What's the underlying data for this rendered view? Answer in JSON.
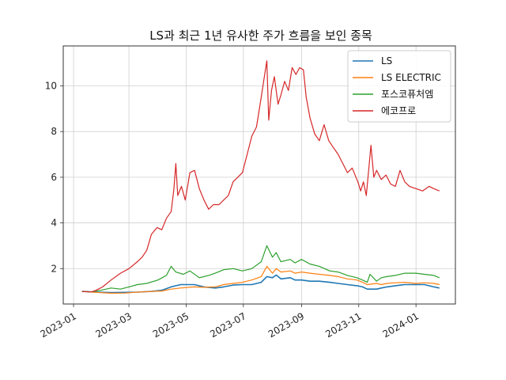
{
  "chart_data": {
    "type": "line",
    "title": "LS과 최근 1년 유사한 주가 흐름을 보인 종목",
    "xlabel": "",
    "ylabel": "",
    "x_ticks": [
      "2023-01",
      "2023-03",
      "2023-05",
      "2023-07",
      "2023-09",
      "2023-11",
      "2024-01"
    ],
    "y_ticks": [
      2,
      4,
      6,
      8,
      10
    ],
    "xlim": [
      "2022-12-21",
      "2024-02-12"
    ],
    "ylim": [
      0.45,
      11.75
    ],
    "grid": true,
    "legend_position": "top-right",
    "series": [
      {
        "name": "LS",
        "color": "#1f77b4",
        "points": [
          [
            "2023-01-10",
            1.0
          ],
          [
            "2023-01-25",
            0.97
          ],
          [
            "2023-02-10",
            0.95
          ],
          [
            "2023-02-25",
            0.96
          ],
          [
            "2023-03-10",
            0.97
          ],
          [
            "2023-03-25",
            1.0
          ],
          [
            "2023-04-05",
            1.05
          ],
          [
            "2023-04-15",
            1.2
          ],
          [
            "2023-04-25",
            1.3
          ],
          [
            "2023-05-10",
            1.3
          ],
          [
            "2023-05-20",
            1.2
          ],
          [
            "2023-06-01",
            1.15
          ],
          [
            "2023-06-10",
            1.2
          ],
          [
            "2023-06-20",
            1.28
          ],
          [
            "2023-06-30",
            1.3
          ],
          [
            "2023-07-10",
            1.3
          ],
          [
            "2023-07-20",
            1.4
          ],
          [
            "2023-07-26",
            1.65
          ],
          [
            "2023-08-01",
            1.6
          ],
          [
            "2023-08-05",
            1.72
          ],
          [
            "2023-08-10",
            1.55
          ],
          [
            "2023-08-20",
            1.6
          ],
          [
            "2023-08-25",
            1.5
          ],
          [
            "2023-09-01",
            1.5
          ],
          [
            "2023-09-10",
            1.45
          ],
          [
            "2023-09-20",
            1.45
          ],
          [
            "2023-10-01",
            1.4
          ],
          [
            "2023-10-10",
            1.35
          ],
          [
            "2023-10-20",
            1.3
          ],
          [
            "2023-10-30",
            1.25
          ],
          [
            "2023-11-05",
            1.2
          ],
          [
            "2023-11-10",
            1.1
          ],
          [
            "2023-11-20",
            1.1
          ],
          [
            "2023-11-25",
            1.15
          ],
          [
            "2023-12-01",
            1.2
          ],
          [
            "2023-12-10",
            1.25
          ],
          [
            "2023-12-20",
            1.3
          ],
          [
            "2024-01-01",
            1.3
          ],
          [
            "2024-01-10",
            1.3
          ],
          [
            "2024-01-20",
            1.2
          ],
          [
            "2024-01-26",
            1.15
          ]
        ]
      },
      {
        "name": "LS ELECTRIC",
        "color": "#ff7f0e",
        "points": [
          [
            "2023-01-10",
            1.0
          ],
          [
            "2023-01-25",
            0.96
          ],
          [
            "2023-02-10",
            0.92
          ],
          [
            "2023-02-25",
            0.93
          ],
          [
            "2023-03-10",
            0.97
          ],
          [
            "2023-03-25",
            1.0
          ],
          [
            "2023-04-05",
            1.02
          ],
          [
            "2023-04-15",
            1.1
          ],
          [
            "2023-04-25",
            1.15
          ],
          [
            "2023-05-10",
            1.2
          ],
          [
            "2023-05-20",
            1.18
          ],
          [
            "2023-06-01",
            1.2
          ],
          [
            "2023-06-10",
            1.3
          ],
          [
            "2023-06-20",
            1.35
          ],
          [
            "2023-06-30",
            1.4
          ],
          [
            "2023-07-10",
            1.5
          ],
          [
            "2023-07-20",
            1.65
          ],
          [
            "2023-07-26",
            2.1
          ],
          [
            "2023-08-01",
            1.8
          ],
          [
            "2023-08-05",
            2.0
          ],
          [
            "2023-08-10",
            1.85
          ],
          [
            "2023-08-20",
            1.9
          ],
          [
            "2023-08-25",
            1.8
          ],
          [
            "2023-09-01",
            1.85
          ],
          [
            "2023-09-10",
            1.8
          ],
          [
            "2023-09-20",
            1.75
          ],
          [
            "2023-10-01",
            1.7
          ],
          [
            "2023-10-10",
            1.65
          ],
          [
            "2023-10-20",
            1.55
          ],
          [
            "2023-10-30",
            1.5
          ],
          [
            "2023-11-05",
            1.4
          ],
          [
            "2023-11-10",
            1.3
          ],
          [
            "2023-11-20",
            1.35
          ],
          [
            "2023-11-25",
            1.3
          ],
          [
            "2023-12-01",
            1.35
          ],
          [
            "2023-12-10",
            1.38
          ],
          [
            "2023-12-20",
            1.4
          ],
          [
            "2024-01-01",
            1.35
          ],
          [
            "2024-01-10",
            1.38
          ],
          [
            "2024-01-20",
            1.35
          ],
          [
            "2024-01-26",
            1.3
          ]
        ]
      },
      {
        "name": "포스코퓨처엠",
        "color": "#2ca02c",
        "points": [
          [
            "2023-01-10",
            1.0
          ],
          [
            "2023-01-20",
            0.98
          ],
          [
            "2023-01-30",
            1.05
          ],
          [
            "2023-02-10",
            1.15
          ],
          [
            "2023-02-20",
            1.1
          ],
          [
            "2023-03-01",
            1.2
          ],
          [
            "2023-03-10",
            1.3
          ],
          [
            "2023-03-20",
            1.35
          ],
          [
            "2023-04-01",
            1.5
          ],
          [
            "2023-04-10",
            1.7
          ],
          [
            "2023-04-15",
            2.1
          ],
          [
            "2023-04-20",
            1.85
          ],
          [
            "2023-04-28",
            1.75
          ],
          [
            "2023-05-05",
            1.9
          ],
          [
            "2023-05-15",
            1.6
          ],
          [
            "2023-05-25",
            1.7
          ],
          [
            "2023-06-01",
            1.8
          ],
          [
            "2023-06-10",
            1.95
          ],
          [
            "2023-06-20",
            2.0
          ],
          [
            "2023-06-30",
            1.9
          ],
          [
            "2023-07-10",
            2.0
          ],
          [
            "2023-07-20",
            2.3
          ],
          [
            "2023-07-26",
            3.0
          ],
          [
            "2023-08-01",
            2.5
          ],
          [
            "2023-08-05",
            2.7
          ],
          [
            "2023-08-10",
            2.3
          ],
          [
            "2023-08-20",
            2.4
          ],
          [
            "2023-08-25",
            2.25
          ],
          [
            "2023-09-01",
            2.4
          ],
          [
            "2023-09-10",
            2.2
          ],
          [
            "2023-09-20",
            2.1
          ],
          [
            "2023-10-01",
            1.9
          ],
          [
            "2023-10-10",
            1.85
          ],
          [
            "2023-10-20",
            1.7
          ],
          [
            "2023-10-30",
            1.6
          ],
          [
            "2023-11-05",
            1.5
          ],
          [
            "2023-11-10",
            1.4
          ],
          [
            "2023-11-13",
            1.75
          ],
          [
            "2023-11-20",
            1.45
          ],
          [
            "2023-11-25",
            1.6
          ],
          [
            "2023-12-01",
            1.65
          ],
          [
            "2023-12-10",
            1.7
          ],
          [
            "2023-12-20",
            1.8
          ],
          [
            "2024-01-01",
            1.8
          ],
          [
            "2024-01-10",
            1.75
          ],
          [
            "2024-01-20",
            1.7
          ],
          [
            "2024-01-26",
            1.6
          ]
        ]
      },
      {
        "name": "에코프로",
        "color": "#d62728",
        "points": [
          [
            "2023-01-10",
            1.0
          ],
          [
            "2023-01-20",
            0.98
          ],
          [
            "2023-01-25",
            1.05
          ],
          [
            "2023-02-01",
            1.2
          ],
          [
            "2023-02-10",
            1.5
          ],
          [
            "2023-02-20",
            1.8
          ],
          [
            "2023-03-01",
            2.0
          ],
          [
            "2023-03-10",
            2.3
          ],
          [
            "2023-03-15",
            2.5
          ],
          [
            "2023-03-20",
            2.8
          ],
          [
            "2023-03-25",
            3.5
          ],
          [
            "2023-03-31",
            3.8
          ],
          [
            "2023-04-05",
            3.7
          ],
          [
            "2023-04-10",
            4.2
          ],
          [
            "2023-04-15",
            4.5
          ],
          [
            "2023-04-18",
            5.5
          ],
          [
            "2023-04-20",
            6.6
          ],
          [
            "2023-04-22",
            5.2
          ],
          [
            "2023-04-26",
            5.6
          ],
          [
            "2023-04-30",
            5.0
          ],
          [
            "2023-05-05",
            6.2
          ],
          [
            "2023-05-10",
            6.3
          ],
          [
            "2023-05-15",
            5.5
          ],
          [
            "2023-05-20",
            5.0
          ],
          [
            "2023-05-25",
            4.6
          ],
          [
            "2023-05-30",
            4.8
          ],
          [
            "2023-06-05",
            4.8
          ],
          [
            "2023-06-10",
            5.0
          ],
          [
            "2023-06-15",
            5.2
          ],
          [
            "2023-06-20",
            5.8
          ],
          [
            "2023-06-25",
            6.0
          ],
          [
            "2023-06-30",
            6.2
          ],
          [
            "2023-07-05",
            7.0
          ],
          [
            "2023-07-10",
            7.8
          ],
          [
            "2023-07-15",
            8.2
          ],
          [
            "2023-07-20",
            9.5
          ],
          [
            "2023-07-23",
            10.3
          ],
          [
            "2023-07-26",
            11.1
          ],
          [
            "2023-07-28",
            8.5
          ],
          [
            "2023-07-31",
            9.8
          ],
          [
            "2023-08-03",
            10.4
          ],
          [
            "2023-08-07",
            9.2
          ],
          [
            "2023-08-10",
            9.6
          ],
          [
            "2023-08-14",
            10.2
          ],
          [
            "2023-08-18",
            9.8
          ],
          [
            "2023-08-22",
            10.8
          ],
          [
            "2023-08-26",
            10.5
          ],
          [
            "2023-08-30",
            10.8
          ],
          [
            "2023-09-03",
            10.7
          ],
          [
            "2023-09-06",
            9.5
          ],
          [
            "2023-09-10",
            8.6
          ],
          [
            "2023-09-15",
            7.9
          ],
          [
            "2023-09-20",
            7.6
          ],
          [
            "2023-09-25",
            8.3
          ],
          [
            "2023-09-30",
            7.6
          ],
          [
            "2023-10-05",
            7.3
          ],
          [
            "2023-10-10",
            7.0
          ],
          [
            "2023-10-15",
            6.6
          ],
          [
            "2023-10-20",
            6.2
          ],
          [
            "2023-10-25",
            6.4
          ],
          [
            "2023-10-31",
            5.8
          ],
          [
            "2023-11-03",
            5.4
          ],
          [
            "2023-11-06",
            5.8
          ],
          [
            "2023-11-09",
            5.2
          ],
          [
            "2023-11-12",
            6.5
          ],
          [
            "2023-11-14",
            7.4
          ],
          [
            "2023-11-17",
            6.0
          ],
          [
            "2023-11-20",
            6.3
          ],
          [
            "2023-11-25",
            5.9
          ],
          [
            "2023-11-30",
            6.1
          ],
          [
            "2023-12-05",
            5.7
          ],
          [
            "2023-12-10",
            5.6
          ],
          [
            "2023-12-15",
            6.3
          ],
          [
            "2023-12-20",
            5.8
          ],
          [
            "2023-12-25",
            5.6
          ],
          [
            "2024-01-01",
            5.5
          ],
          [
            "2024-01-08",
            5.4
          ],
          [
            "2024-01-15",
            5.6
          ],
          [
            "2024-01-20",
            5.5
          ],
          [
            "2024-01-26",
            5.4
          ]
        ]
      }
    ]
  }
}
